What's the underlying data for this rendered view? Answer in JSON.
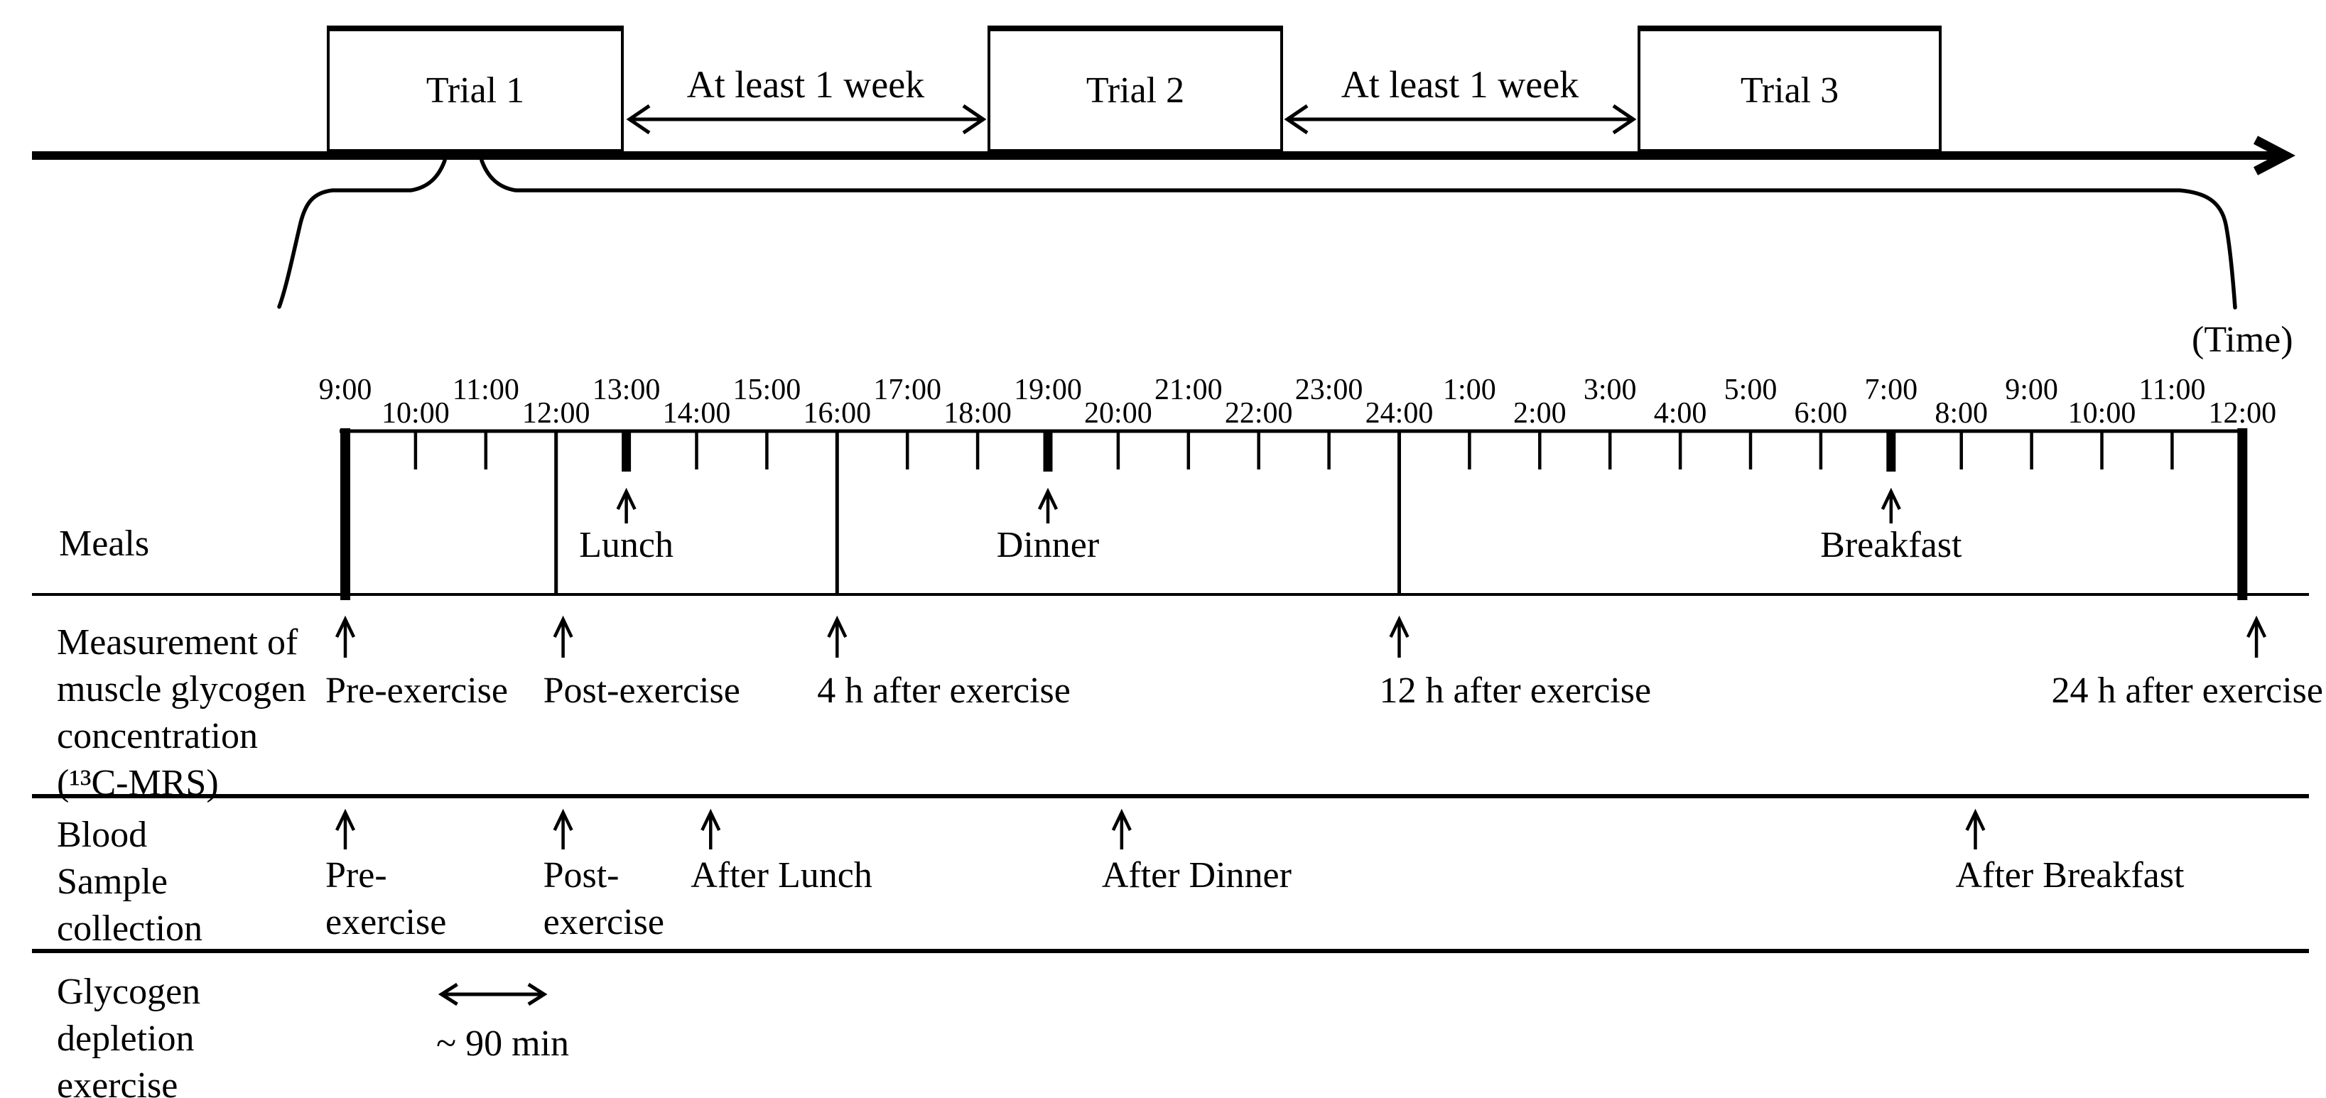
{
  "overview": {
    "trials": [
      {
        "label": "Trial 1"
      },
      {
        "label": "Trial 2"
      },
      {
        "label": "Trial 3"
      }
    ],
    "washout_label": "At least 1 week",
    "time_label": "(Time)"
  },
  "time_axis": {
    "start_label": "9:00",
    "end_label": "12:00",
    "hours": [
      {
        "label": "9:00",
        "t": 0,
        "mark": "bar"
      },
      {
        "label": "10:00",
        "t": 1,
        "mark": "tick"
      },
      {
        "label": "11:00",
        "t": 2,
        "mark": "tick"
      },
      {
        "label": "12:00",
        "t": 3,
        "mark": "sep"
      },
      {
        "label": "13:00",
        "t": 4,
        "mark": "meal"
      },
      {
        "label": "14:00",
        "t": 5,
        "mark": "tick"
      },
      {
        "label": "15:00",
        "t": 6,
        "mark": "tick"
      },
      {
        "label": "16:00",
        "t": 7,
        "mark": "sep"
      },
      {
        "label": "17:00",
        "t": 8,
        "mark": "tick"
      },
      {
        "label": "18:00",
        "t": 9,
        "mark": "tick"
      },
      {
        "label": "19:00",
        "t": 10,
        "mark": "meal"
      },
      {
        "label": "20:00",
        "t": 11,
        "mark": "tick"
      },
      {
        "label": "21:00",
        "t": 12,
        "mark": "tick"
      },
      {
        "label": "22:00",
        "t": 13,
        "mark": "tick"
      },
      {
        "label": "23:00",
        "t": 14,
        "mark": "tick"
      },
      {
        "label": "24:00",
        "t": 15,
        "mark": "sep"
      },
      {
        "label": "1:00",
        "t": 16,
        "mark": "tick"
      },
      {
        "label": "2:00",
        "t": 17,
        "mark": "tick"
      },
      {
        "label": "3:00",
        "t": 18,
        "mark": "tick"
      },
      {
        "label": "4:00",
        "t": 19,
        "mark": "tick"
      },
      {
        "label": "5:00",
        "t": 20,
        "mark": "tick"
      },
      {
        "label": "6:00",
        "t": 21,
        "mark": "tick"
      },
      {
        "label": "7:00",
        "t": 22,
        "mark": "meal"
      },
      {
        "label": "8:00",
        "t": 23,
        "mark": "tick"
      },
      {
        "label": "9:00",
        "t": 24,
        "mark": "tick"
      },
      {
        "label": "10:00",
        "t": 25,
        "mark": "tick"
      },
      {
        "label": "11:00",
        "t": 26,
        "mark": "tick"
      },
      {
        "label": "12:00",
        "t": 27,
        "mark": "bar"
      }
    ]
  },
  "meals": {
    "row_label": "Meals",
    "items": [
      {
        "label": "Lunch",
        "t": 4
      },
      {
        "label": "Dinner",
        "t": 10
      },
      {
        "label": "Breakfast",
        "t": 22
      }
    ]
  },
  "muscle_glycogen": {
    "row_label": "Measurement of\nmuscle glycogen\nconcentration\n(¹³C-MRS)",
    "items": [
      {
        "label": "Pre-exercise",
        "t": 0
      },
      {
        "label": "Post-exercise",
        "t": 3.1
      },
      {
        "label": "4 h after exercise",
        "t": 7
      },
      {
        "label": "12 h after exercise",
        "t": 15
      },
      {
        "label": "24 h after exercise",
        "t": 27.2
      }
    ]
  },
  "blood_samples": {
    "row_label": "Blood\nSample\ncollection",
    "items": [
      {
        "label": "Pre-\nexercise",
        "t": 0
      },
      {
        "label": "Post-\nexercise",
        "t": 3.1
      },
      {
        "label": "After Lunch",
        "t": 5.2
      },
      {
        "label": "After Dinner",
        "t": 11.05
      },
      {
        "label": "After Breakfast",
        "t": 23.2
      }
    ]
  },
  "glycogen_depletion": {
    "row_label": "Glycogen\ndepletion\nexercise",
    "duration_label": "~ 90 min",
    "duration_t_start": 1.35,
    "duration_t_end": 2.85
  }
}
